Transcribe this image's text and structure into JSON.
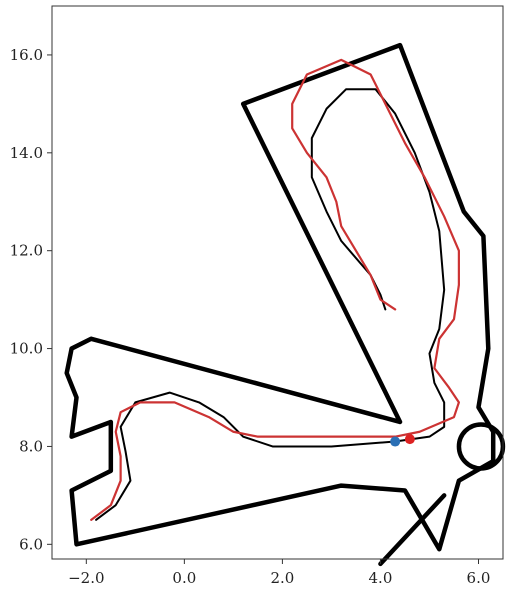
{
  "chart_data": {
    "type": "line",
    "title": "",
    "xlabel": "",
    "ylabel": "",
    "xlim": [
      -2.7,
      6.5
    ],
    "ylim": [
      5.7,
      17.0
    ],
    "grid": false,
    "legend": null,
    "x_ticks": [
      -2.0,
      0.0,
      2.0,
      4.0,
      6.0
    ],
    "x_tick_labels": [
      "−2.0",
      "0.0",
      "2.0",
      "4.0",
      "6.0"
    ],
    "y_ticks": [
      6.0,
      8.0,
      10.0,
      12.0,
      14.0,
      16.0
    ],
    "y_tick_labels": [
      "6.0",
      "8.0",
      "10.0",
      "12.0",
      "14.0",
      "16.0"
    ],
    "series": [
      {
        "role": "environment-outline",
        "color": "#000000",
        "points": [
          [
            -1.9,
            10.2
          ],
          [
            4.4,
            8.5
          ],
          [
            1.2,
            15.0
          ],
          [
            4.4,
            16.2
          ],
          [
            5.7,
            12.8
          ],
          [
            6.1,
            12.3
          ],
          [
            6.2,
            10.0
          ],
          [
            6.0,
            8.8
          ],
          [
            6.3,
            8.3
          ],
          [
            6.3,
            7.7
          ],
          [
            5.6,
            7.3
          ],
          [
            5.2,
            5.9
          ],
          [
            4.5,
            7.1
          ],
          [
            3.2,
            7.2
          ],
          [
            -2.2,
            6.0
          ],
          [
            -2.3,
            7.1
          ],
          [
            -1.5,
            7.5
          ],
          [
            -1.5,
            8.5
          ],
          [
            -2.3,
            8.2
          ],
          [
            -2.2,
            9.0
          ],
          [
            -2.4,
            9.5
          ],
          [
            -2.3,
            10.0
          ],
          [
            -1.9,
            10.2
          ]
        ]
      },
      {
        "role": "exit-corridor",
        "color": "#000000",
        "points": [
          [
            5.3,
            7.0
          ],
          [
            4.0,
            5.6
          ]
        ]
      },
      {
        "role": "reference-path",
        "color": "#000000",
        "points": [
          [
            -1.8,
            6.5
          ],
          [
            -1.4,
            6.8
          ],
          [
            -1.1,
            7.3
          ],
          [
            -1.2,
            7.9
          ],
          [
            -1.3,
            8.4
          ],
          [
            -1.0,
            8.9
          ],
          [
            -0.3,
            9.1
          ],
          [
            0.3,
            8.9
          ],
          [
            0.8,
            8.6
          ],
          [
            1.2,
            8.2
          ],
          [
            1.8,
            8.0
          ],
          [
            3.0,
            8.0
          ],
          [
            4.3,
            8.1
          ],
          [
            5.0,
            8.2
          ],
          [
            5.3,
            8.4
          ],
          [
            5.3,
            8.9
          ],
          [
            5.1,
            9.3
          ],
          [
            5.0,
            9.9
          ],
          [
            5.2,
            10.4
          ],
          [
            5.3,
            11.2
          ],
          [
            5.2,
            12.4
          ],
          [
            5.0,
            13.2
          ],
          [
            4.7,
            14.0
          ],
          [
            4.3,
            14.8
          ],
          [
            3.9,
            15.3
          ],
          [
            3.3,
            15.3
          ],
          [
            2.9,
            14.9
          ],
          [
            2.6,
            14.3
          ],
          [
            2.6,
            13.5
          ],
          [
            2.9,
            12.8
          ],
          [
            3.2,
            12.2
          ],
          [
            3.8,
            11.5
          ],
          [
            4.0,
            11.1
          ],
          [
            4.1,
            10.8
          ]
        ]
      },
      {
        "role": "planned-path",
        "color": "#cc3333",
        "points": [
          [
            -1.9,
            6.5
          ],
          [
            -1.5,
            6.8
          ],
          [
            -1.3,
            7.3
          ],
          [
            -1.3,
            7.8
          ],
          [
            -1.4,
            8.3
          ],
          [
            -1.3,
            8.7
          ],
          [
            -0.9,
            8.9
          ],
          [
            -0.2,
            8.9
          ],
          [
            0.5,
            8.6
          ],
          [
            1.0,
            8.3
          ],
          [
            1.5,
            8.2
          ],
          [
            3.0,
            8.2
          ],
          [
            4.3,
            8.2
          ],
          [
            4.8,
            8.3
          ],
          [
            5.5,
            8.6
          ],
          [
            5.6,
            8.9
          ],
          [
            5.4,
            9.2
          ],
          [
            5.1,
            9.6
          ],
          [
            5.2,
            10.2
          ],
          [
            5.5,
            10.6
          ],
          [
            5.6,
            11.3
          ],
          [
            5.6,
            12.0
          ],
          [
            5.3,
            12.7
          ],
          [
            4.9,
            13.5
          ],
          [
            4.5,
            14.2
          ],
          [
            4.1,
            15.0
          ],
          [
            3.8,
            15.6
          ],
          [
            3.2,
            15.9
          ],
          [
            2.5,
            15.6
          ],
          [
            2.2,
            15.0
          ],
          [
            2.2,
            14.5
          ],
          [
            2.5,
            14.0
          ],
          [
            2.9,
            13.5
          ],
          [
            3.1,
            13.0
          ],
          [
            3.2,
            12.5
          ],
          [
            3.5,
            12.0
          ],
          [
            3.8,
            11.5
          ],
          [
            4.0,
            11.0
          ],
          [
            4.3,
            10.8
          ]
        ]
      },
      {
        "role": "current-position",
        "type": "scatter",
        "color": "#2a6fb5",
        "points": [
          [
            4.3,
            8.1
          ]
        ]
      },
      {
        "role": "goal-position",
        "type": "scatter",
        "color": "#dd2222",
        "points": [
          [
            4.6,
            8.15
          ]
        ]
      }
    ]
  }
}
